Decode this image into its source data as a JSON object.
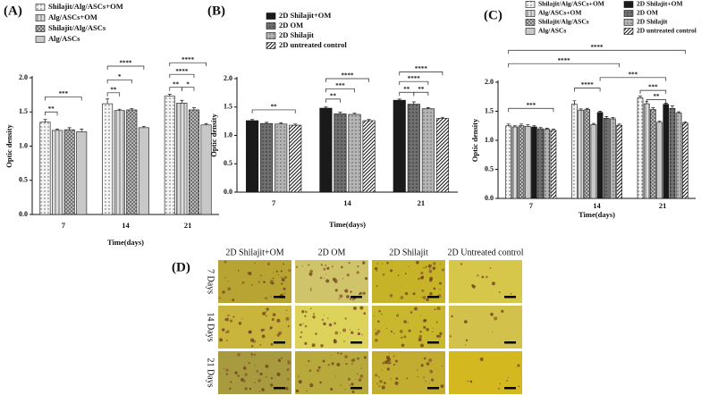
{
  "chart_data": [
    {
      "type": "bar",
      "panel_label": "(A)",
      "categories": [
        "7",
        "14",
        "21"
      ],
      "series": [
        {
          "name": "Shilajit/Alg/ASCs+OM",
          "color": "#f4f4f4",
          "pattern": "dots",
          "values": [
            1.35,
            1.62,
            1.73
          ],
          "errors": [
            0.04,
            0.07,
            0.03
          ]
        },
        {
          "name": "Alg/ASCs+OM",
          "color": "#dcdcdc",
          "pattern": "vlines",
          "values": [
            1.23,
            1.52,
            1.63
          ],
          "errors": [
            0.02,
            0.02,
            0.04
          ]
        },
        {
          "name": "Shilajit/Alg/ASCs",
          "color": "#c4c4c4",
          "pattern": "cross",
          "values": [
            1.24,
            1.53,
            1.53
          ],
          "errors": [
            0.03,
            0.02,
            0.03
          ]
        },
        {
          "name": "Alg/ASCs",
          "color": "#c8c8c8",
          "pattern": "solid",
          "values": [
            1.21,
            1.27,
            1.31
          ],
          "errors": [
            0.04,
            0.02,
            0.02
          ]
        }
      ],
      "ylim": [
        0,
        2
      ],
      "yticks": [
        {
          "value": 0,
          "label": "0.0"
        },
        0.5,
        {
          "value": 1,
          "label": "1.0"
        },
        1.5,
        {
          "value": 2,
          "label": "2.0"
        }
      ],
      "ylabel": "Optic density",
      "xlabel": "Time(days)",
      "annotations": [
        "**",
        "***",
        "**",
        "*",
        "****",
        "**",
        "*",
        "****",
        "****"
      ]
    },
    {
      "type": "bar",
      "panel_label": "(B)",
      "categories": [
        "7",
        "14",
        "21"
      ],
      "series": [
        {
          "name": "2D Shilajit+OM",
          "color": "#1a1a1a",
          "pattern": "solid",
          "values": [
            1.26,
            1.48,
            1.62
          ],
          "errors": [
            0.02,
            0.02,
            0.02
          ]
        },
        {
          "name": "2D OM",
          "color": "#707070",
          "pattern": "dots",
          "values": [
            1.21,
            1.38,
            1.55
          ],
          "errors": [
            0.02,
            0.03,
            0.04
          ]
        },
        {
          "name": "2D Shilajit",
          "color": "#b4b4b4",
          "pattern": "dots",
          "values": [
            1.2,
            1.37,
            1.47
          ],
          "errors": [
            0.02,
            0.02,
            0.02
          ]
        },
        {
          "name": "2D untreated control",
          "color": "#ffffff",
          "pattern": "hatch",
          "values": [
            1.18,
            1.26,
            1.3
          ],
          "errors": [
            0.02,
            0.02,
            0.02
          ]
        }
      ],
      "ylim": [
        0,
        2
      ],
      "yticks": [
        {
          "value": 0,
          "label": "0.0"
        },
        0.5,
        {
          "value": 1,
          "label": "1.0"
        },
        1.5,
        {
          "value": 2,
          "label": "2.0"
        }
      ],
      "ylabel": "Optic density",
      "xlabel": "Time(days)",
      "annotations": [
        "**",
        "**",
        "***",
        "****",
        "**",
        "**",
        "****",
        "****"
      ]
    },
    {
      "type": "bar",
      "panel_label": "(C)",
      "categories": [
        "7",
        "14",
        "21"
      ],
      "series": [
        {
          "name": "Shilajit/Alg/ASCs+OM",
          "color": "#f4f4f4",
          "pattern": "dots",
          "values": [
            1.25,
            1.62,
            1.73
          ],
          "errors": [
            0.03,
            0.06,
            0.03
          ]
        },
        {
          "name": "Alg/ASCs+OM",
          "color": "#dcdcdc",
          "pattern": "vlines",
          "values": [
            1.23,
            1.52,
            1.63
          ],
          "errors": [
            0.02,
            0.02,
            0.04
          ]
        },
        {
          "name": "Shilajit/Alg/ASCs",
          "color": "#c4c4c4",
          "pattern": "cross",
          "values": [
            1.25,
            1.53,
            1.53
          ],
          "errors": [
            0.03,
            0.02,
            0.03
          ]
        },
        {
          "name": "Alg/ASCs",
          "color": "#c8c8c8",
          "pattern": "solid",
          "values": [
            1.24,
            1.27,
            1.31
          ],
          "errors": [
            0.03,
            0.02,
            0.02
          ]
        },
        {
          "name": "2D Shilajit+OM",
          "color": "#1a1a1a",
          "pattern": "solid",
          "values": [
            1.23,
            1.48,
            1.62
          ],
          "errors": [
            0.02,
            0.02,
            0.02
          ]
        },
        {
          "name": "2D OM",
          "color": "#707070",
          "pattern": "dots",
          "values": [
            1.2,
            1.38,
            1.55
          ],
          "errors": [
            0.02,
            0.03,
            0.04
          ]
        },
        {
          "name": "2D Shilajit",
          "color": "#b4b4b4",
          "pattern": "dots",
          "values": [
            1.19,
            1.37,
            1.47
          ],
          "errors": [
            0.02,
            0.02,
            0.02
          ]
        },
        {
          "name": "2D untreated control",
          "color": "#ffffff",
          "pattern": "hatch",
          "values": [
            1.17,
            1.26,
            1.3
          ],
          "errors": [
            0.02,
            0.02,
            0.02
          ]
        }
      ],
      "ylim": [
        0,
        2
      ],
      "yticks": [
        {
          "value": 0,
          "label": "0.0"
        },
        0.5,
        {
          "value": 1,
          "label": "1.0"
        },
        1.5,
        {
          "value": 2,
          "label": "2.0"
        }
      ],
      "ylabel": "Optic density",
      "xlabel": "Time(days)",
      "annotations": [
        "****",
        "****",
        "***",
        "****",
        "***",
        "***",
        "**"
      ]
    }
  ],
  "panel_d": {
    "panel_label": "(D)",
    "columns": [
      "2D Shilajit+OM",
      "2D OM",
      "2D Shilajit",
      "2D Untreated control"
    ],
    "rows": [
      "7 Days",
      "14 Days",
      "21 Days"
    ]
  }
}
